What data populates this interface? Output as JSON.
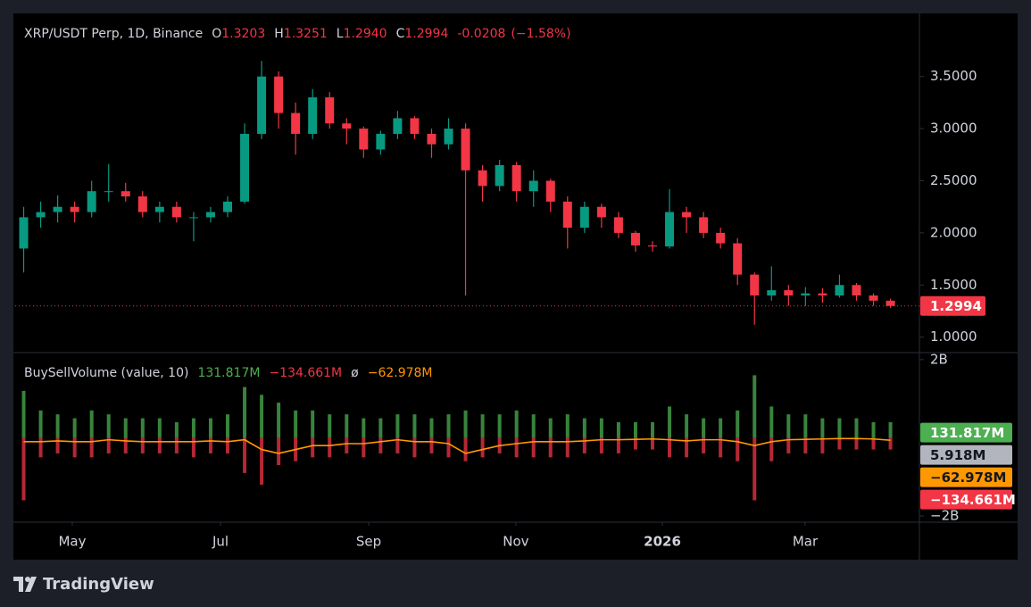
{
  "chart_data": [
    {
      "type": "candlestick",
      "title": "XRP/USDT Perp, 1D, Binance",
      "ohlc_header": {
        "open_letter": "O",
        "open": 1.3203,
        "high_letter": "H",
        "high": 1.3251,
        "low_letter": "L",
        "low": {
          "value": 1.294,
          "label": "1.2940"
        },
        "close_letter": "C",
        "close": 1.2994,
        "change": -0.0208,
        "change_percent": {
          "value": -1.58,
          "label": "(−1.58%)"
        }
      },
      "open": [
        1.85,
        2.15,
        2.2,
        2.25,
        2.2,
        2.4,
        2.4,
        2.35,
        2.2,
        2.25,
        2.15,
        2.15,
        2.2,
        2.3,
        2.95,
        3.5,
        3.15,
        2.95,
        3.3,
        3.05,
        3.0,
        2.8,
        2.95,
        3.1,
        2.95,
        2.85,
        3.0,
        2.6,
        2.45,
        2.65,
        2.4,
        2.5,
        2.3,
        2.05,
        2.25,
        2.15,
        2.0,
        1.88,
        1.87,
        2.2,
        2.15,
        2.0,
        1.9,
        1.6,
        1.4,
        1.45,
        1.4,
        1.42,
        1.4,
        1.5,
        1.4,
        1.35
      ],
      "high": [
        2.25,
        2.3,
        2.36,
        2.3,
        2.5,
        2.66,
        2.48,
        2.4,
        2.3,
        2.3,
        2.2,
        2.25,
        2.35,
        3.05,
        3.65,
        3.55,
        3.25,
        3.38,
        3.35,
        3.1,
        3.02,
        2.98,
        3.17,
        3.12,
        3.0,
        3.1,
        3.05,
        2.65,
        2.7,
        2.68,
        2.6,
        2.52,
        2.35,
        2.3,
        2.28,
        2.2,
        2.02,
        1.92,
        2.42,
        2.25,
        2.2,
        2.05,
        1.95,
        1.62,
        1.68,
        1.5,
        1.48,
        1.47,
        1.6,
        1.52,
        1.42,
        1.37
      ],
      "low": [
        1.62,
        2.05,
        2.1,
        2.1,
        2.15,
        2.3,
        2.3,
        2.15,
        2.1,
        2.1,
        1.92,
        2.1,
        2.15,
        2.28,
        2.9,
        3.0,
        2.75,
        2.9,
        3.0,
        2.85,
        2.72,
        2.75,
        2.9,
        2.9,
        2.72,
        2.8,
        1.4,
        2.3,
        2.4,
        2.3,
        2.25,
        2.2,
        1.85,
        2.0,
        2.05,
        1.95,
        1.82,
        1.82,
        1.85,
        2.0,
        1.95,
        1.85,
        1.5,
        1.12,
        1.35,
        1.3,
        1.3,
        1.33,
        1.38,
        1.35,
        1.3,
        1.28
      ],
      "close": [
        2.15,
        2.2,
        2.25,
        2.2,
        2.4,
        2.4,
        2.35,
        2.2,
        2.25,
        2.15,
        2.15,
        2.2,
        2.3,
        2.95,
        3.5,
        3.15,
        2.95,
        3.3,
        3.05,
        3.0,
        2.8,
        2.95,
        3.1,
        2.95,
        2.85,
        3.0,
        2.6,
        2.45,
        2.65,
        2.4,
        2.5,
        2.3,
        2.05,
        2.25,
        2.15,
        2.0,
        1.88,
        1.87,
        2.2,
        2.15,
        2.0,
        1.9,
        1.6,
        1.4,
        1.45,
        1.4,
        1.42,
        1.4,
        1.5,
        1.4,
        1.35,
        1.2994
      ],
      "up_color": "#089981",
      "down_color": "#f23645",
      "ylim": [
        0.852,
        3.977
      ],
      "yticks": [
        {
          "value": 1,
          "label": "1.0000"
        },
        {
          "value": 1.5,
          "label": "1.5000"
        },
        {
          "value": 2,
          "label": "2.0000"
        },
        {
          "value": 2.5,
          "label": "2.5000"
        },
        {
          "value": 3,
          "label": "3.0000"
        },
        {
          "value": 3.5,
          "label": "3.5000"
        }
      ],
      "xticks": [
        {
          "value": 2.86,
          "label": "May"
        },
        {
          "value": 11.58,
          "label": "Jul"
        },
        {
          "value": 20.3,
          "label": "Sep"
        },
        {
          "value": 28.96,
          "label": "Nov"
        },
        {
          "value": 37.58,
          "label": "2026"
        },
        {
          "value": 45.98,
          "label": "Mar"
        }
      ]
    },
    {
      "type": "bar",
      "title": "BuySellVolume (value, 10)",
      "separator": "ø",
      "series": [
        {
          "color": "#4caf50",
          "last": {
            "value": 131817000,
            "label": "131.817M"
          },
          "values": [
            1200000000.0,
            700000000.0,
            600000000.0,
            500000000.0,
            700000000.0,
            600000000.0,
            500000000.0,
            500000000.0,
            500000000.0,
            400000000.0,
            500000000.0,
            500000000.0,
            600000000.0,
            1300000000.0,
            1100000000.0,
            900000000.0,
            700000000.0,
            700000000.0,
            600000000.0,
            600000000.0,
            500000000.0,
            500000000.0,
            600000000.0,
            600000000.0,
            500000000.0,
            600000000.0,
            700000000.0,
            600000000.0,
            600000000.0,
            700000000.0,
            600000000.0,
            500000000.0,
            600000000.0,
            500000000.0,
            500000000.0,
            400000000.0,
            400000000.0,
            400000000.0,
            800000000.0,
            600000000.0,
            500000000.0,
            500000000.0,
            700000000.0,
            1600000000.0,
            800000000.0,
            600000000.0,
            600000000.0,
            500000000.0,
            500000000.0,
            500000000.0,
            400000000.0,
            400000000.0
          ]
        },
        {
          "color": "#f23645",
          "last": {
            "value": -134661000,
            "label": "−134.661M"
          },
          "values": [
            -1600000000.0,
            -500000000.0,
            -400000000.0,
            -500000000.0,
            -500000000.0,
            -400000000.0,
            -400000000.0,
            -400000000.0,
            -400000000.0,
            -400000000.0,
            -500000000.0,
            -400000000.0,
            -400000000.0,
            -900000000.0,
            -1200000000.0,
            -700000000.0,
            -600000000.0,
            -500000000.0,
            -500000000.0,
            -400000000.0,
            -500000000.0,
            -400000000.0,
            -400000000.0,
            -500000000.0,
            -400000000.0,
            -500000000.0,
            -600000000.0,
            -500000000.0,
            -400000000.0,
            -500000000.0,
            -500000000.0,
            -500000000.0,
            -500000000.0,
            -400000000.0,
            -400000000.0,
            -400000000.0,
            -300000000.0,
            -300000000.0,
            -500000000.0,
            -500000000.0,
            -400000000.0,
            -500000000.0,
            -600000000.0,
            -1600000000.0,
            -600000000.0,
            -400000000.0,
            -400000000.0,
            -400000000.0,
            -300000000.0,
            -300000000.0,
            -300000000.0,
            -300000000.0
          ]
        },
        {
          "color": "#ff9800",
          "style": "line",
          "last": {
            "value": -62978000,
            "label": "−62.978M"
          },
          "values": [
            -100000000.0,
            -100000000.0,
            -80000000.0,
            -100000000.0,
            -100000000.0,
            -50000000.0,
            -80000000.0,
            -100000000.0,
            -100000000.0,
            -100000000.0,
            -100000000.0,
            -80000000.0,
            -100000000.0,
            -50000000.0,
            -300000000.0,
            -400000000.0,
            -300000000.0,
            -200000000.0,
            -200000000.0,
            -150000000.0,
            -150000000.0,
            -100000000.0,
            -50000000.0,
            -100000000.0,
            -100000000.0,
            -150000000.0,
            -400000000.0,
            -300000000.0,
            -200000000.0,
            -150000000.0,
            -100000000.0,
            -100000000.0,
            -100000000.0,
            -80000000.0,
            -50000000.0,
            -50000000.0,
            -40000000.0,
            -30000000.0,
            -50000000.0,
            -80000000.0,
            -50000000.0,
            -50000000.0,
            -100000000.0,
            -200000000.0,
            -100000000.0,
            -50000000.0,
            -40000000.0,
            -30000000.0,
            -20000000.0,
            -20000000.0,
            -30000000.0,
            -62978000
          ]
        }
      ],
      "extra_tags": [
        {
          "value": 5918000,
          "label": "5.918M",
          "color": "#b2b5be"
        }
      ],
      "ylim": [
        -2160000000.0,
        2180000000.0
      ],
      "yticks": [
        {
          "value": 2000000000.0,
          "label": "2B"
        },
        {
          "value": -2000000000.0,
          "label": "−2B"
        }
      ]
    }
  ],
  "footer": {
    "brand": "TradingView"
  }
}
